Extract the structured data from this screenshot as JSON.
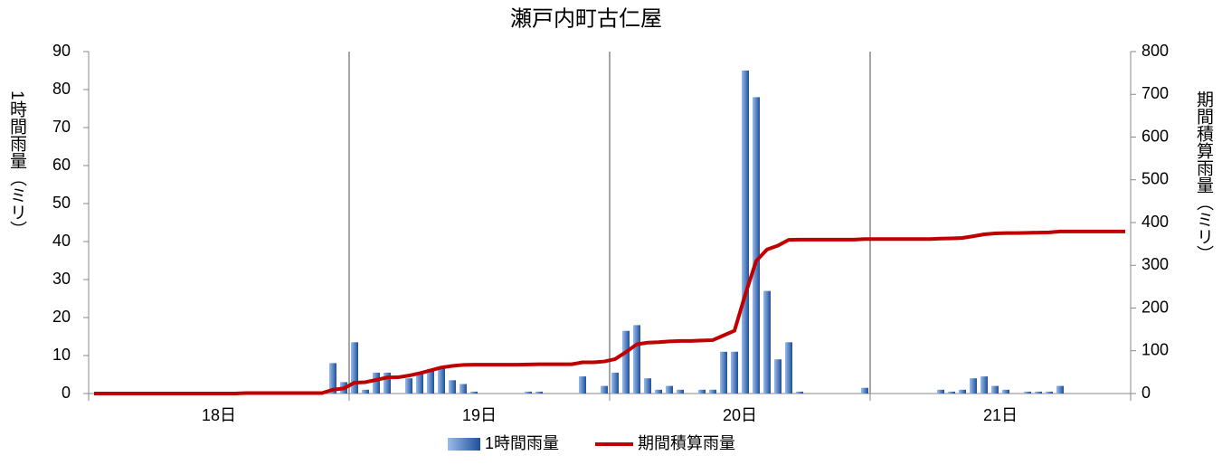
{
  "chart_data": {
    "type": "bar_line",
    "title": "瀬戸内町古仁屋",
    "y_label": "1時間雨量（ミリ）",
    "y2_label": "期間積算雨量（ミリ）",
    "categories": [
      null,
      null,
      null,
      null,
      null,
      null,
      null,
      null,
      null,
      null,
      null,
      null,
      "18日",
      null,
      null,
      null,
      null,
      null,
      null,
      null,
      null,
      null,
      null,
      null,
      null,
      null,
      null,
      null,
      null,
      null,
      null,
      null,
      null,
      null,
      null,
      null,
      "19日",
      null,
      null,
      null,
      null,
      null,
      null,
      null,
      null,
      null,
      null,
      null,
      null,
      null,
      null,
      null,
      null,
      null,
      null,
      null,
      null,
      null,
      null,
      null,
      "20日",
      null,
      null,
      null,
      null,
      null,
      null,
      null,
      null,
      null,
      null,
      null,
      null,
      null,
      null,
      null,
      null,
      null,
      null,
      null,
      null,
      null,
      null,
      null,
      "21日",
      null,
      null,
      null,
      null,
      null,
      null,
      null,
      null,
      null,
      null,
      null
    ],
    "series": [
      {
        "name": "1時間雨量",
        "type": "bar",
        "color": "#4a7cc7",
        "values": [
          0,
          0,
          0,
          0,
          0,
          0,
          0,
          0,
          0,
          0,
          0,
          0,
          0,
          0,
          0,
          0,
          0,
          0,
          0,
          0,
          0,
          0,
          8,
          3,
          13.5,
          1,
          5.5,
          5.5,
          0,
          4,
          5.5,
          6.5,
          7,
          3.5,
          2.5,
          0.5,
          0,
          0,
          0,
          0,
          0.5,
          0.5,
          0,
          0,
          0,
          4.5,
          0,
          2,
          5.5,
          16.5,
          18,
          4,
          1,
          2,
          1,
          0,
          1,
          1,
          11,
          11,
          85,
          78,
          27,
          9,
          13.5,
          0.5,
          0,
          0,
          0,
          0,
          0,
          1.5,
          0,
          0,
          0,
          0,
          0,
          0,
          1,
          0.5,
          1,
          4,
          4.5,
          2,
          1,
          0,
          0.5,
          0.5,
          0.5,
          2,
          0,
          0,
          0,
          0,
          0,
          0
        ]
      },
      {
        "name": "期間積算雨量",
        "type": "line",
        "color": "#c00000",
        "axis": "y2",
        "values": [
          0,
          0,
          0,
          0,
          0,
          0,
          0,
          0,
          0,
          0,
          0,
          0,
          0,
          0,
          1,
          1,
          1,
          1,
          1,
          1,
          1,
          1,
          9,
          12,
          25.5,
          26.5,
          32,
          37.5,
          38,
          42,
          47.5,
          54,
          61,
          64.5,
          67,
          67.5,
          67.5,
          67.5,
          67.5,
          67.5,
          68,
          68.5,
          68.5,
          68.5,
          68.5,
          73,
          73,
          75,
          80.5,
          97,
          115,
          119,
          120,
          122,
          123,
          123,
          124,
          125,
          136,
          147,
          232,
          310,
          337,
          346,
          359.5,
          360,
          360,
          360,
          360,
          360,
          360,
          361.5,
          361.5,
          361.5,
          361.5,
          361.5,
          361.5,
          361.5,
          362.5,
          363,
          364,
          368,
          372.5,
          374.5,
          375.5,
          375.5,
          376,
          376.5,
          377,
          379,
          379,
          379,
          379,
          379,
          379,
          379
        ]
      }
    ],
    "ylim": [
      0,
      90
    ],
    "yticks": [
      0,
      10,
      20,
      30,
      40,
      50,
      60,
      70,
      80,
      90
    ],
    "y2lim": [
      0,
      800
    ],
    "y2ticks": [
      0,
      100,
      200,
      300,
      400,
      500,
      600,
      700,
      800
    ],
    "legend": "bottom"
  }
}
